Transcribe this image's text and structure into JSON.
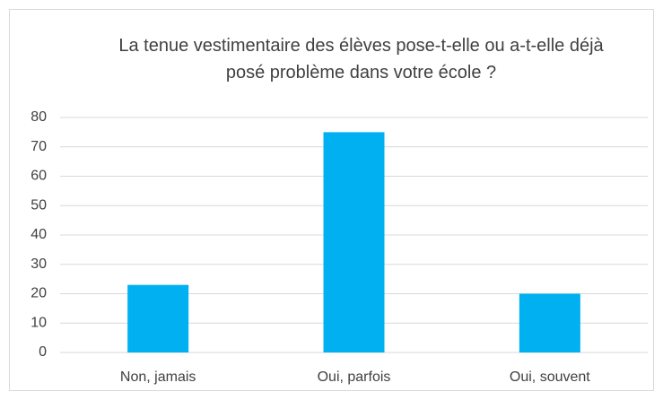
{
  "chart_data": {
    "type": "bar",
    "title": "La tenue vestimentaire des élèves pose-t-elle ou a-t-elle déjà posé problème dans votre école ?",
    "categories": [
      "Non, jamais",
      "Oui, parfois",
      "Oui, souvent"
    ],
    "values": [
      23,
      75,
      20
    ],
    "color": "#00b0f0",
    "ylim": [
      0,
      80
    ],
    "yticks": [
      0,
      10,
      20,
      30,
      40,
      50,
      60,
      70,
      80
    ],
    "grid": true
  }
}
